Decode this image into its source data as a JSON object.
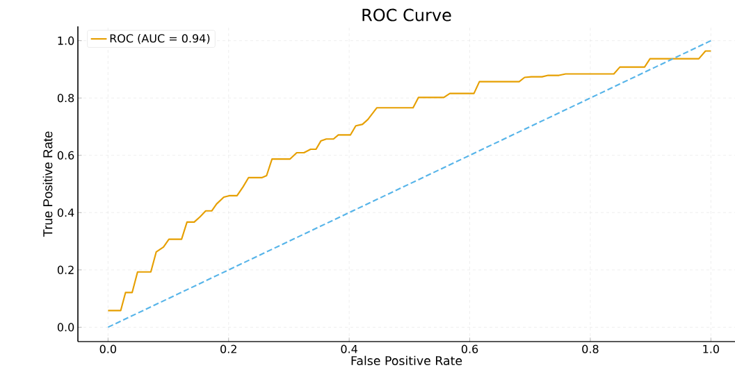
{
  "chart_data": {
    "type": "line",
    "title": "ROC Curve",
    "xlabel": "False Positive Rate",
    "ylabel": "True Positive Rate",
    "xlim": [
      -0.05,
      1.04
    ],
    "ylim": [
      -0.05,
      1.05
    ],
    "xticks": [
      {
        "value": 0,
        "label": "0.0"
      },
      {
        "value": 0.2,
        "label": "0.2"
      },
      {
        "value": 0.4,
        "label": "0.4"
      },
      {
        "value": 0.6,
        "label": "0.6"
      },
      {
        "value": 0.8,
        "label": "0.8"
      },
      {
        "value": 1,
        "label": "1.0"
      }
    ],
    "yticks": [
      {
        "value": 0,
        "label": "0.0"
      },
      {
        "value": 0.2,
        "label": "0.2"
      },
      {
        "value": 0.4,
        "label": "0.4"
      },
      {
        "value": 0.6,
        "label": "0.6"
      },
      {
        "value": 0.8,
        "label": "0.8"
      },
      {
        "value": 1,
        "label": "1.0"
      }
    ],
    "grid": true,
    "legend": "top left",
    "marker": "none",
    "series": [
      {
        "name": "ROC (AUC = 0.94)",
        "color": "#e69f00",
        "line_style": "solid",
        "x": [
          0,
          0.021,
          0.029,
          0.04,
          0.049,
          0.071,
          0.08,
          0.092,
          0.101,
          0.122,
          0.131,
          0.143,
          0.153,
          0.162,
          0.172,
          0.18,
          0.192,
          0.201,
          0.214,
          0.224,
          0.233,
          0.255,
          0.263,
          0.272,
          0.302,
          0.313,
          0.325,
          0.336,
          0.345,
          0.353,
          0.362,
          0.374,
          0.382,
          0.402,
          0.411,
          0.422,
          0.431,
          0.446,
          0.506,
          0.515,
          0.557,
          0.567,
          0.607,
          0.616,
          0.682,
          0.691,
          0.702,
          0.72,
          0.73,
          0.748,
          0.759,
          0.839,
          0.849,
          0.89,
          0.899,
          0.98,
          0.991,
          1.0
        ],
        "values": [
          0.058,
          0.058,
          0.121,
          0.121,
          0.193,
          0.193,
          0.263,
          0.28,
          0.307,
          0.307,
          0.367,
          0.367,
          0.386,
          0.406,
          0.406,
          0.43,
          0.454,
          0.459,
          0.459,
          0.49,
          0.522,
          0.522,
          0.529,
          0.587,
          0.587,
          0.609,
          0.609,
          0.621,
          0.621,
          0.65,
          0.657,
          0.657,
          0.671,
          0.671,
          0.703,
          0.708,
          0.725,
          0.766,
          0.766,
          0.802,
          0.802,
          0.816,
          0.816,
          0.857,
          0.857,
          0.872,
          0.874,
          0.874,
          0.879,
          0.879,
          0.884,
          0.884,
          0.908,
          0.908,
          0.937,
          0.937,
          0.964,
          0.964
        ]
      },
      {
        "color": "#56b4e9",
        "line_style": "dashed",
        "x": [
          0,
          1
        ],
        "values": [
          0,
          1
        ]
      }
    ]
  }
}
